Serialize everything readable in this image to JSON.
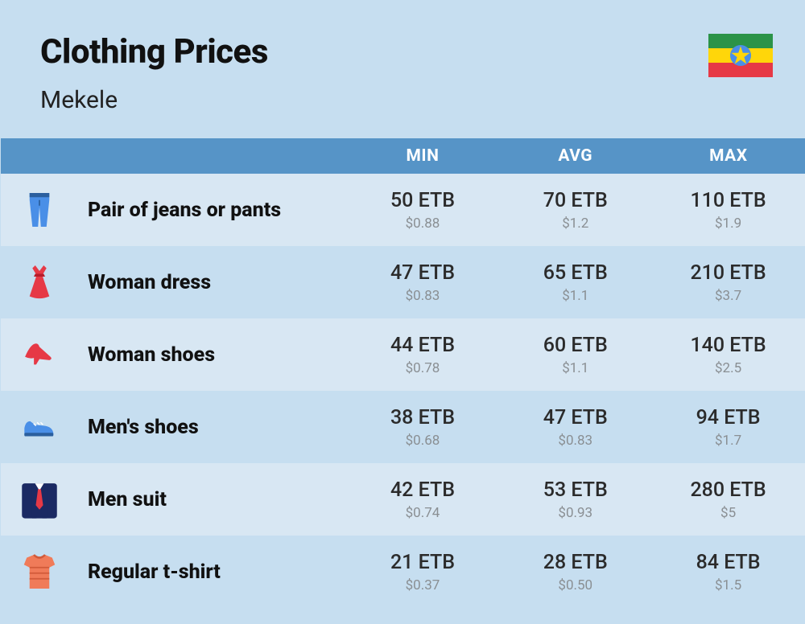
{
  "header": {
    "title": "Clothing Prices",
    "subtitle": "Mekele"
  },
  "flag": {
    "name": "ethiopia-flag",
    "stripes": [
      "#2b9348",
      "#ffd60a",
      "#e63946"
    ],
    "disc": "#4a8fe7",
    "star": "#ffd60a"
  },
  "columns": {
    "icon": "",
    "name": "",
    "min": "MIN",
    "avg": "AVG",
    "max": "MAX"
  },
  "table_style": {
    "header_bg": "#5694c7",
    "header_fg": "#ffffff",
    "row_odd_bg": "#d8e7f3",
    "row_even_bg": "#c6def0",
    "main_text_color": "#2b2b2b",
    "sub_text_color": "#8a8f93",
    "name_fontsize": 25,
    "main_fontsize": 25,
    "sub_fontsize": 17
  },
  "rows": [
    {
      "icon": "jeans-icon",
      "name": "Pair of jeans or pants",
      "min_main": "50 ETB",
      "min_sub": "$0.88",
      "avg_main": "70 ETB",
      "avg_sub": "$1.2",
      "max_main": "110 ETB",
      "max_sub": "$1.9"
    },
    {
      "icon": "dress-icon",
      "name": "Woman dress",
      "min_main": "47 ETB",
      "min_sub": "$0.83",
      "avg_main": "65 ETB",
      "avg_sub": "$1.1",
      "max_main": "210 ETB",
      "max_sub": "$3.7"
    },
    {
      "icon": "heel-icon",
      "name": "Woman shoes",
      "min_main": "44 ETB",
      "min_sub": "$0.78",
      "avg_main": "60 ETB",
      "avg_sub": "$1.1",
      "max_main": "140 ETB",
      "max_sub": "$2.5"
    },
    {
      "icon": "sneaker-icon",
      "name": "Men's shoes",
      "min_main": "38 ETB",
      "min_sub": "$0.68",
      "avg_main": "47 ETB",
      "avg_sub": "$0.83",
      "max_main": "94 ETB",
      "max_sub": "$1.7"
    },
    {
      "icon": "suit-icon",
      "name": "Men suit",
      "min_main": "42 ETB",
      "min_sub": "$0.74",
      "avg_main": "53 ETB",
      "avg_sub": "$0.93",
      "max_main": "280 ETB",
      "max_sub": "$5"
    },
    {
      "icon": "tshirt-icon",
      "name": "Regular t-shirt",
      "min_main": "21 ETB",
      "min_sub": "$0.37",
      "avg_main": "28 ETB",
      "avg_sub": "$0.50",
      "max_main": "84 ETB",
      "max_sub": "$1.5"
    }
  ],
  "icons": {
    "jeans-icon": {
      "primary": "#4a8fe7",
      "secondary": "#2b5f9e"
    },
    "dress-icon": {
      "primary": "#e63946",
      "secondary": "#b71c2b"
    },
    "heel-icon": {
      "primary": "#e63946",
      "secondary": "#b71c2b"
    },
    "sneaker-icon": {
      "primary": "#4a8fe7",
      "secondary": "#2b5f9e"
    },
    "suit-icon": {
      "primary": "#1b2a63",
      "secondary": "#e63946",
      "tertiary": "#ffffff"
    },
    "tshirt-icon": {
      "primary": "#f07b59",
      "secondary": "#d15a3a"
    }
  }
}
